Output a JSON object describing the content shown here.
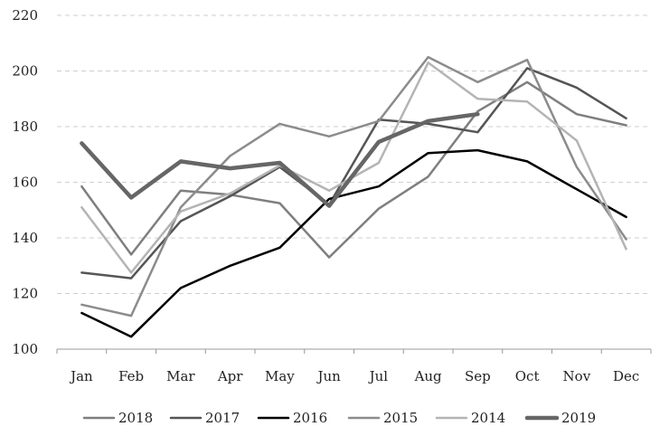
{
  "chart_data": {
    "type": "line",
    "title": "",
    "xlabel": "",
    "ylabel": "",
    "categories": [
      "Jan",
      "Feb",
      "Mar",
      "Apr",
      "May",
      "Jun",
      "Jul",
      "Aug",
      "Sep",
      "Oct",
      "Nov",
      "Dec"
    ],
    "ylim": [
      100,
      220
    ],
    "yticks": [
      "100",
      "120",
      "140",
      "160",
      "180",
      "200",
      "220"
    ],
    "grid": "horizontal dashed",
    "legend_position": "bottom",
    "series": [
      {
        "name": "2018",
        "color": "#7f7f7f",
        "values": [
          158.5,
          134,
          157,
          155.5,
          152.5,
          133,
          150.5,
          162,
          185.5,
          196,
          184.5,
          180.5
        ]
      },
      {
        "name": "2017",
        "color": "#555555",
        "values": [
          127.5,
          125.5,
          146,
          155,
          165.5,
          152,
          182.5,
          181,
          178,
          201,
          194,
          183
        ]
      },
      {
        "name": "2016",
        "color": "#000000",
        "values": [
          113,
          104.5,
          122,
          130,
          136.5,
          154,
          158.5,
          170.5,
          171.5,
          167.5,
          157.5,
          147.5
        ]
      },
      {
        "name": "2015",
        "color": "#8c8c8c",
        "values": [
          116,
          112,
          151,
          169.5,
          181,
          176.5,
          182,
          205,
          196,
          204,
          165.5,
          139.5
        ]
      },
      {
        "name": "2014",
        "color": "#b4b4b4",
        "values": [
          151,
          127.5,
          149.5,
          156,
          166,
          157,
          167,
          203,
          190,
          189,
          175,
          136
        ]
      },
      {
        "name": "2019",
        "color": "#666666",
        "values": [
          174,
          154.5,
          167.5,
          165,
          167,
          151.5,
          174.5,
          182,
          184.5,
          null,
          null,
          null
        ]
      }
    ]
  }
}
